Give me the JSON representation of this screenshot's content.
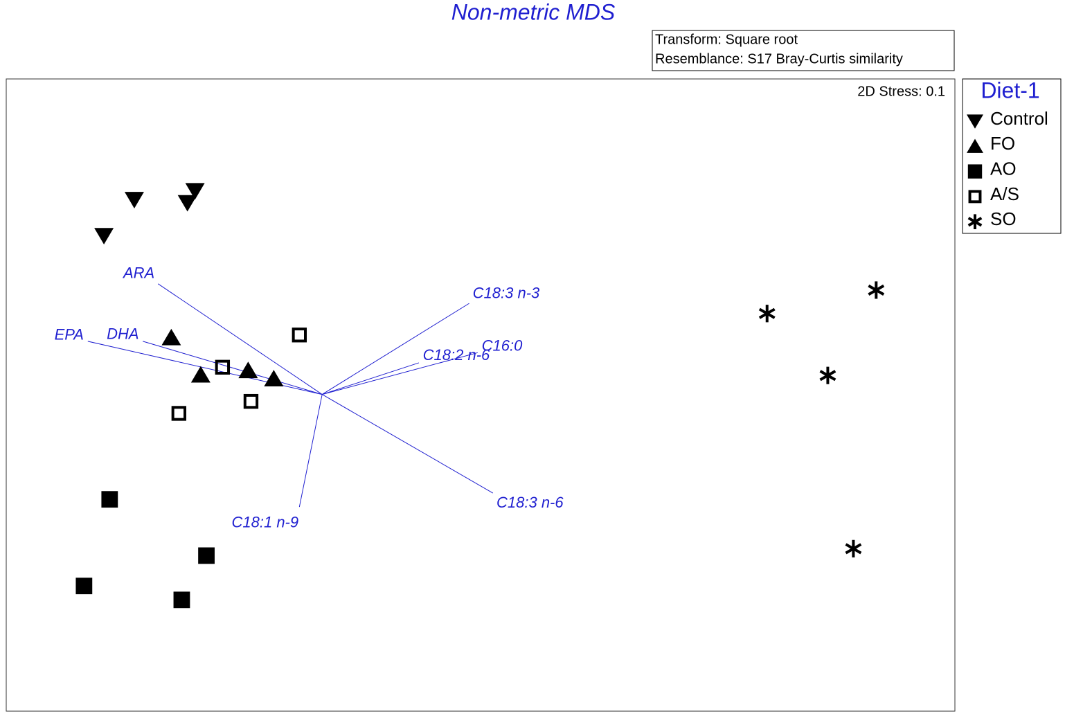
{
  "chart_data": {
    "type": "scatter",
    "title": "Non-metric MDS",
    "notes": [
      "Transform: Square root",
      "Resemblance: S17 Bray-Curtis similarity"
    ],
    "stress": "2D Stress: 0.1",
    "legend_title": "Diet-1",
    "legend_position": "outside-right",
    "xlim": [
      0,
      100
    ],
    "ylim": [
      0,
      100
    ],
    "series": [
      {
        "name": "Control",
        "marker": "triangle-down",
        "color": "#000000",
        "x": [
          13.5,
          19.9,
          19.1,
          10.3
        ],
        "values": [
          80.9,
          82.3,
          80.4,
          75.2
        ]
      },
      {
        "name": "FO",
        "marker": "triangle-up",
        "color": "#000000",
        "x": [
          17.4,
          20.5,
          25.5,
          28.2
        ],
        "values": [
          59.1,
          53.2,
          53.9,
          52.6
        ]
      },
      {
        "name": "AO",
        "marker": "square",
        "color": "#000000",
        "x": [
          10.9,
          21.1,
          8.2,
          18.5
        ],
        "values": [
          33.5,
          24.6,
          19.8,
          17.6
        ]
      },
      {
        "name": "A/S",
        "marker": "open-square",
        "color": "#000000",
        "x": [
          30.9,
          22.8,
          25.8,
          18.2
        ],
        "values": [
          59.5,
          54.4,
          49.0,
          47.1
        ]
      },
      {
        "name": "SO",
        "marker": "asterisk",
        "color": "#000000",
        "x": [
          80.2,
          91.7,
          86.6,
          89.3
        ],
        "values": [
          62.9,
          66.6,
          53.1,
          25.7
        ]
      }
    ],
    "vector_color": "#1f1fd0",
    "vector_origin": {
      "x": 33.3,
      "y": 50.1
    },
    "vectors": [
      {
        "name": "ARA",
        "x": 16.0,
        "y": 67.6
      },
      {
        "name": "EPA",
        "x": 8.6,
        "y": 58.5
      },
      {
        "name": "DHA",
        "x": 14.4,
        "y": 58.5
      },
      {
        "name": "C18:3 n-3",
        "x": 48.8,
        "y": 64.5
      },
      {
        "name": "C18:2 n-6",
        "x": 43.5,
        "y": 55.1
      },
      {
        "name": "C16:0",
        "x": 49.7,
        "y": 56.7
      },
      {
        "name": "C18:3 n-6",
        "x": 51.3,
        "y": 34.5
      },
      {
        "name": "C18:1 n-9",
        "x": 30.9,
        "y": 32.3
      }
    ]
  }
}
